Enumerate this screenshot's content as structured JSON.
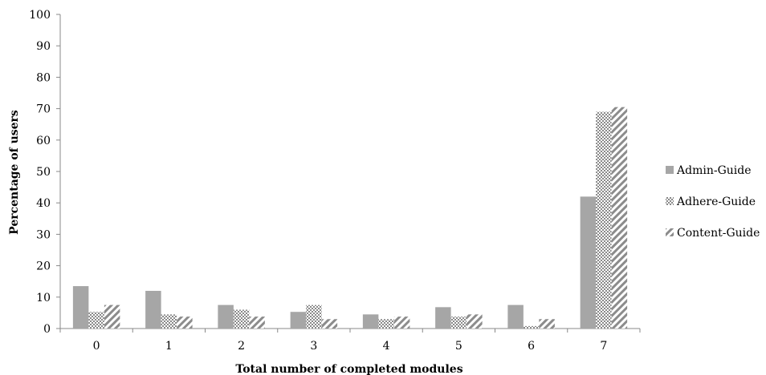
{
  "chart_data": {
    "type": "bar",
    "title": "",
    "xlabel": "Total number of completed modules",
    "ylabel": "Percentage of users",
    "categories": [
      "0",
      "1",
      "2",
      "3",
      "4",
      "5",
      "6",
      "7"
    ],
    "ylim": [
      0,
      100
    ],
    "yticks": [
      "0",
      "10",
      "20",
      "30",
      "40",
      "50",
      "60",
      "70",
      "80",
      "90",
      "100"
    ],
    "grid": false,
    "legend_position": "right",
    "series": [
      {
        "name": "Admin-Guide",
        "pattern": "solid",
        "color": "#a6a6a6",
        "values": [
          13.5,
          12,
          7.5,
          5.3,
          4.5,
          6.8,
          7.5,
          42
        ]
      },
      {
        "name": "Adhere-Guide",
        "pattern": "dots",
        "color": "#a6a6a6",
        "values": [
          5.3,
          4.5,
          6,
          7.5,
          3,
          3.8,
          0.8,
          69
        ]
      },
      {
        "name": "Content-Guide",
        "pattern": "diagonal",
        "color": "#8c8c8c",
        "values": [
          7.5,
          3.8,
          3.8,
          3,
          3.8,
          4.5,
          3,
          70.5
        ]
      }
    ]
  }
}
